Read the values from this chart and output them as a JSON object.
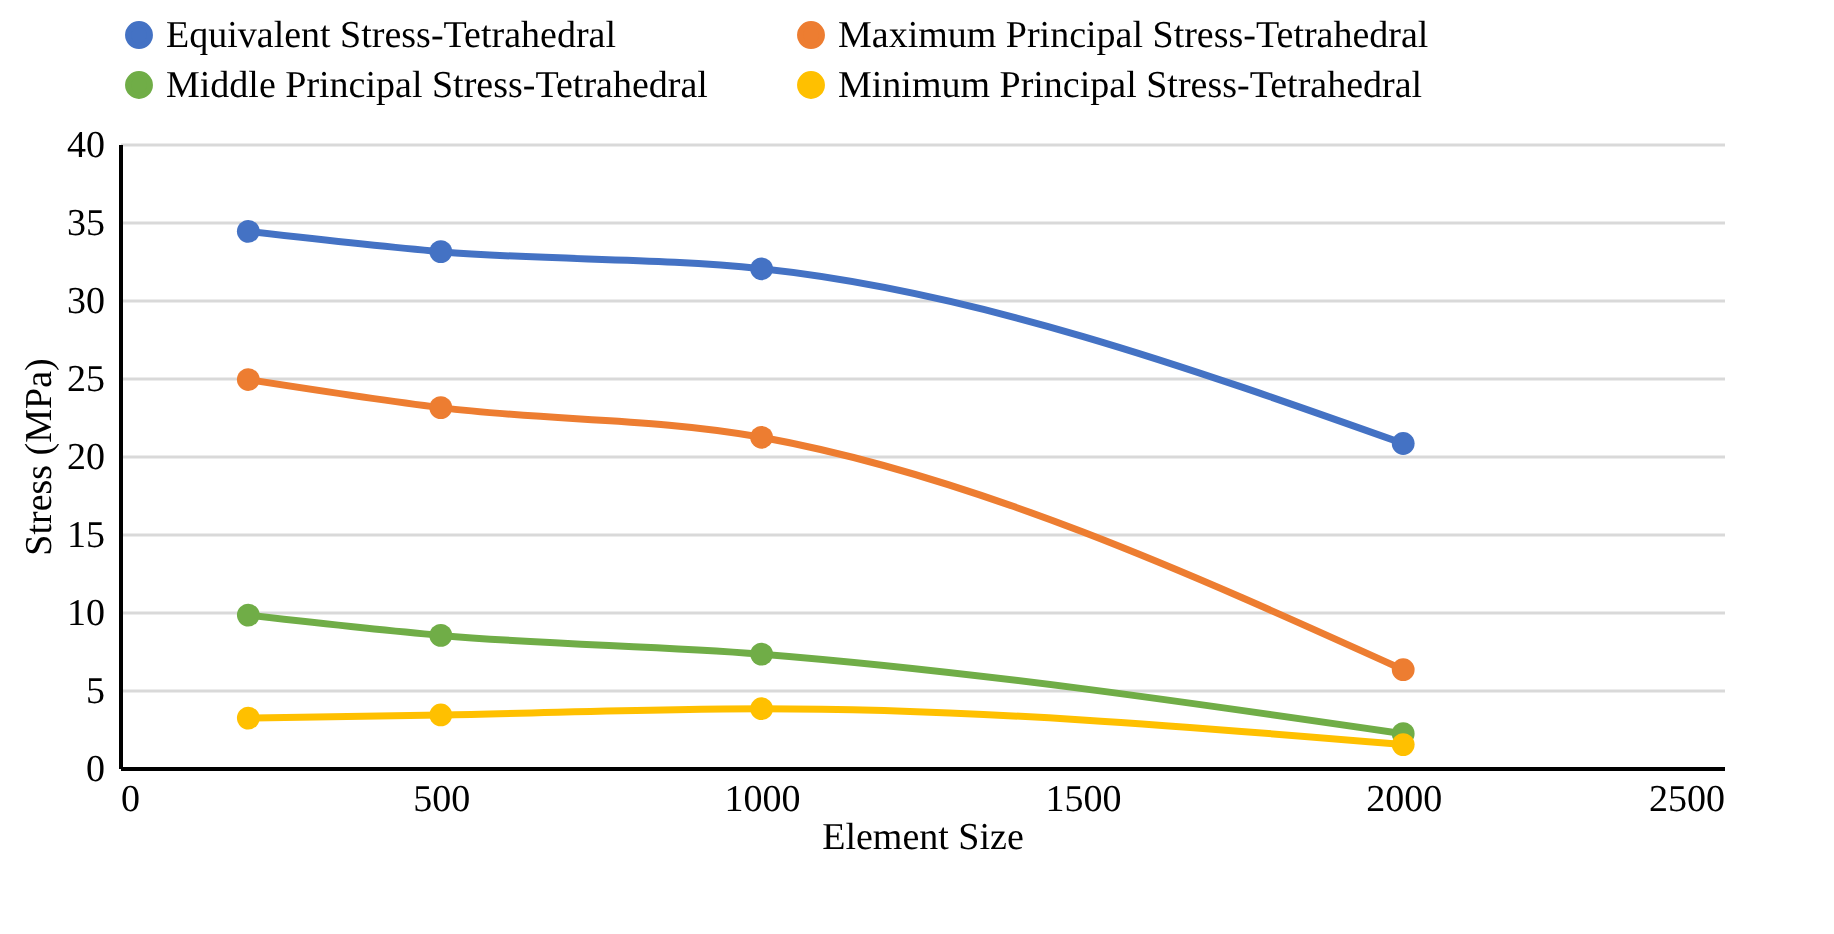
{
  "chart_data": {
    "type": "line",
    "xlabel": "Element Size",
    "ylabel": "Stress  (MPa)",
    "x": [
      200,
      500,
      1000,
      2000
    ],
    "series": [
      {
        "name": "Equivalent Stress-Tetrahedral",
        "color": "#4472c4",
        "values": [
          34.4,
          33.1,
          32.0,
          20.8
        ]
      },
      {
        "name": "Maximum Principal Stress-Tetrahedral",
        "color": "#ed7d31",
        "values": [
          24.9,
          23.1,
          21.2,
          6.3
        ]
      },
      {
        "name": "Middle Principal Stress-Tetrahedral",
        "color": "#70ad47",
        "values": [
          9.8,
          8.5,
          7.3,
          2.2
        ]
      },
      {
        "name": "Minimum Principal Stress-Tetrahedral",
        "color": "#ffc000",
        "values": [
          3.2,
          3.4,
          3.8,
          1.5
        ]
      }
    ],
    "xlim": [
      0,
      2500
    ],
    "xticks": [
      0,
      500,
      1000,
      1500,
      2000,
      2500
    ],
    "ylim": [
      0,
      40
    ],
    "yticks": [
      0,
      5,
      10,
      15,
      20,
      25,
      30,
      35,
      40
    ],
    "grid": "y",
    "legend": "top",
    "marker": "circle",
    "line_style": "solid"
  }
}
